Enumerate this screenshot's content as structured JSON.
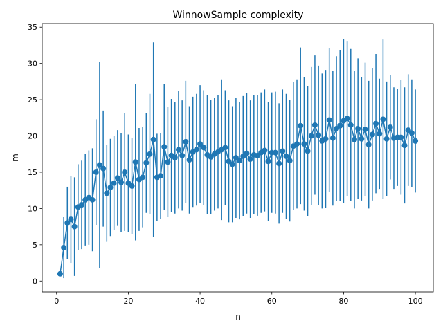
{
  "chart_data": {
    "type": "scatter",
    "title": "WinnowSample complexity",
    "xlabel": "n",
    "ylabel": "m",
    "xlim": [
      -4,
      105
    ],
    "ylim": [
      -1.5,
      35.5
    ],
    "xticks": [
      0,
      20,
      40,
      60,
      80,
      100
    ],
    "yticks": [
      0,
      5,
      10,
      15,
      20,
      25,
      30,
      35
    ],
    "grid": false,
    "legend": "none",
    "color": "#1f77b4",
    "markers": "circle",
    "errorbars": true,
    "series": [
      {
        "x": [
          1,
          2,
          3,
          4,
          5,
          6,
          7,
          8,
          9,
          10,
          11,
          12,
          13,
          14,
          15,
          16,
          17,
          18,
          19,
          20,
          21,
          22,
          23,
          24,
          25,
          26,
          27,
          28,
          29,
          30,
          31,
          32,
          33,
          34,
          35,
          36,
          37,
          38,
          39,
          40,
          41,
          42,
          43,
          44,
          45,
          46,
          47,
          48,
          49,
          50,
          51,
          52,
          53,
          54,
          55,
          56,
          57,
          58,
          59,
          60,
          61,
          62,
          63,
          64,
          65,
          66,
          67,
          68,
          69,
          70,
          71,
          72,
          73,
          74,
          75,
          76,
          77,
          78,
          79,
          80,
          81,
          82,
          83,
          84,
          85,
          86,
          87,
          88,
          89,
          90,
          91,
          92,
          93,
          94,
          95,
          96,
          97,
          98,
          99,
          100
        ],
        "y": [
          1.0,
          4.6,
          8.0,
          8.5,
          7.5,
          10.2,
          10.5,
          11.2,
          11.5,
          11.2,
          15.0,
          16.0,
          15.5,
          12.1,
          12.9,
          13.5,
          14.2,
          13.6,
          15.0,
          13.5,
          13.1,
          16.4,
          14.0,
          14.3,
          16.3,
          17.5,
          19.5,
          14.3,
          14.5,
          18.5,
          16.4,
          17.3,
          17.0,
          18.1,
          17.3,
          19.2,
          16.7,
          17.8,
          18.1,
          18.9,
          18.4,
          17.4,
          17.1,
          17.5,
          17.8,
          18.1,
          18.4,
          16.5,
          16.1,
          17.0,
          16.6,
          17.2,
          17.6,
          16.8,
          17.4,
          17.3,
          17.7,
          18.0,
          16.5,
          17.7,
          17.7,
          16.2,
          17.9,
          17.2,
          16.6,
          18.6,
          18.9,
          21.4,
          18.9,
          17.9,
          20.0,
          21.5,
          20.1,
          19.3,
          19.6,
          22.2,
          19.7,
          21.0,
          21.4,
          22.1,
          22.4,
          21.5,
          19.5,
          21.0,
          19.6,
          20.9,
          18.8,
          20.2,
          21.7,
          20.3,
          22.3,
          19.6,
          21.2,
          19.7,
          19.8,
          19.8,
          18.7,
          20.8,
          20.4,
          19.3
        ],
        "error": [
          0,
          4.2,
          5,
          6,
          6.8,
          5.9,
          6.1,
          6.3,
          6.5,
          7.1,
          7.3,
          14.2,
          8,
          6.7,
          6.7,
          6.5,
          6.6,
          6.8,
          8.1,
          6.7,
          6.6,
          10.8,
          7.1,
          6.9,
          6.9,
          8.3,
          13.4,
          6,
          5.9,
          8.7,
          7.6,
          7.8,
          7.7,
          8.1,
          7.6,
          8.4,
          7.4,
          7.6,
          7.7,
          8.1,
          7.9,
          8.2,
          7.9,
          7.8,
          7.8,
          9.7,
          7.9,
          8.4,
          8,
          8.3,
          8.1,
          8.3,
          8.3,
          8.1,
          8.2,
          8.3,
          8.3,
          8.4,
          8.2,
          8.3,
          8.4,
          8.3,
          8.5,
          8.6,
          8.4,
          8.8,
          8.9,
          10.8,
          9.2,
          9,
          9.5,
          9.6,
          9.6,
          9.3,
          9.5,
          9.9,
          9.3,
          10,
          10.4,
          11.3,
          10.7,
          10.5,
          9.5,
          9.7,
          8.5,
          9.2,
          8.8,
          9.1,
          9.6,
          7.6,
          11,
          7.9,
          7.2,
          7,
          6.7,
          7.9,
          8,
          7.7,
          7.4,
          7.1
        ]
      }
    ]
  }
}
